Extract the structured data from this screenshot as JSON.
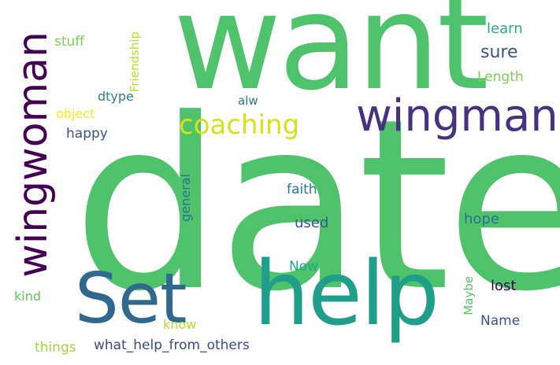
{
  "words": {
    "date": {
      "text": "date",
      "color": "#4ec36b"
    },
    "want": {
      "text": "want",
      "color": "#4ec36b"
    },
    "help": {
      "text": "help",
      "color": "#1f9e89"
    },
    "set": {
      "text": "Set",
      "color": "#31688e"
    },
    "wingman": {
      "text": "wingman",
      "color": "#46327e"
    },
    "wingwoman": {
      "text": "wingwoman",
      "color": "#440154"
    },
    "coaching": {
      "text": "coaching",
      "color": "#d8e219"
    },
    "sure": {
      "text": "sure",
      "color": "#3b528b"
    },
    "learn": {
      "text": "learn",
      "color": "#29af7f"
    },
    "length": {
      "text": "Length",
      "color": "#7ad151"
    },
    "stuff": {
      "text": "stuff",
      "color": "#7ad151"
    },
    "friendship": {
      "text": "Friendship",
      "color": "#bddf26"
    },
    "dtype": {
      "text": "dtype",
      "color": "#26828e"
    },
    "object": {
      "text": "object",
      "color": "#fde725"
    },
    "happy": {
      "text": "happy",
      "color": "#3b528b"
    },
    "alw": {
      "text": "alw",
      "color": "#2a788e"
    },
    "faith": {
      "text": "faith",
      "color": "#2a788e"
    },
    "general": {
      "text": "general",
      "color": "#2c728e"
    },
    "used": {
      "text": "used",
      "color": "#3b528b"
    },
    "hope": {
      "text": "hope",
      "color": "#2c728e"
    },
    "now": {
      "text": "Now",
      "color": "#22a884"
    },
    "maybe": {
      "text": "Maybe",
      "color": "#54c568"
    },
    "lost": {
      "text": "lost",
      "color": "#440154"
    },
    "name": {
      "text": "Name",
      "color": "#3b528b"
    },
    "kind": {
      "text": "kind",
      "color": "#5ec962"
    },
    "know": {
      "text": "know",
      "color": "#b5de2b"
    },
    "things": {
      "text": "things",
      "color": "#a0da39"
    },
    "what_help_from_others": {
      "text": "what_help_from_others",
      "color": "#3e4989"
    }
  }
}
